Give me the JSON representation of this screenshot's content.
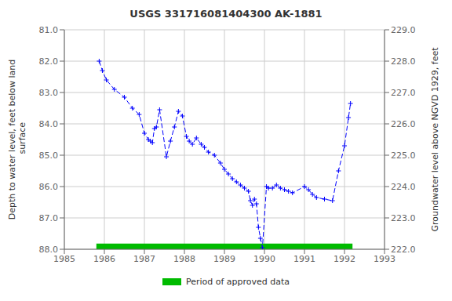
{
  "chart_data": {
    "type": "line",
    "title": "USGS 331716081404300 AK-1881",
    "ylabel": "Depth to water level, feet below land\n surface",
    "y2label": "Groundwater level above NGVD 1929, feet",
    "xlim": [
      1985,
      1993
    ],
    "xticks": [
      1985,
      1986,
      1987,
      1988,
      1989,
      1990,
      1991,
      1992,
      1993
    ],
    "ylim": [
      88.0,
      81.0
    ],
    "yticks": [
      {
        "value": 81.0,
        "label": "81.0"
      },
      {
        "value": 82.0,
        "label": "82.0"
      },
      {
        "value": 83.0,
        "label": "83.0"
      },
      {
        "value": 84.0,
        "label": "84.0"
      },
      {
        "value": 85.0,
        "label": "85.0"
      },
      {
        "value": 86.0,
        "label": "86.0"
      },
      {
        "value": 87.0,
        "label": "87.0"
      },
      {
        "value": 88.0,
        "label": "88.0"
      }
    ],
    "y2lim": [
      222.0,
      229.0
    ],
    "y2ticks": [
      {
        "value": 229.0,
        "label": "229.0"
      },
      {
        "value": 228.0,
        "label": "228.0"
      },
      {
        "value": 227.0,
        "label": "227.0"
      },
      {
        "value": 226.0,
        "label": "226.0"
      },
      {
        "value": 225.0,
        "label": "225.0"
      },
      {
        "value": 224.0,
        "label": "224.0"
      },
      {
        "value": 223.0,
        "label": "223.0"
      },
      {
        "value": 222.0,
        "label": "222.0"
      }
    ],
    "grid": true,
    "legend": "bottom",
    "color": "#0000ff",
    "line_style": "dashed",
    "marker": "plus",
    "x": [
      1985.87,
      1985.95,
      1986.05,
      1986.25,
      1986.5,
      1986.7,
      1986.87,
      1987.0,
      1987.1,
      1987.15,
      1987.2,
      1987.25,
      1987.3,
      1987.38,
      1987.55,
      1987.65,
      1987.75,
      1987.85,
      1987.95,
      1988.05,
      1988.12,
      1988.2,
      1988.3,
      1988.42,
      1988.5,
      1988.6,
      1988.75,
      1988.9,
      1989.0,
      1989.1,
      1989.2,
      1989.3,
      1989.4,
      1989.5,
      1989.6,
      1989.65,
      1989.7,
      1989.75,
      1989.8,
      1989.85,
      1989.9,
      1989.95,
      1990.05,
      1990.1,
      1990.2,
      1990.3,
      1990.4,
      1990.5,
      1990.6,
      1990.7,
      1991.0,
      1991.1,
      1991.2,
      1991.3,
      1991.5,
      1991.7,
      1991.85,
      1992.0,
      1992.1,
      1992.15
    ],
    "values": [
      82.0,
      82.3,
      82.6,
      82.9,
      83.15,
      83.5,
      83.7,
      84.3,
      84.5,
      84.55,
      84.6,
      84.15,
      84.1,
      83.55,
      85.05,
      84.55,
      84.1,
      83.6,
      83.75,
      84.4,
      84.55,
      84.65,
      84.45,
      84.65,
      84.75,
      84.9,
      85.0,
      85.25,
      85.45,
      85.6,
      85.75,
      85.85,
      85.95,
      86.05,
      86.15,
      86.45,
      86.6,
      86.4,
      86.55,
      87.3,
      87.65,
      87.95,
      86.0,
      86.05,
      86.05,
      85.95,
      86.05,
      86.1,
      86.15,
      86.2,
      86.0,
      86.1,
      86.25,
      86.35,
      86.4,
      86.45,
      85.5,
      84.7,
      83.8,
      83.35
    ],
    "bands": [
      {
        "name": "Period of approved data",
        "color": "#00bb00",
        "xrange": [
          1985.8,
          1992.2
        ],
        "yrange": [
          87.82,
          88.0
        ]
      }
    ]
  }
}
